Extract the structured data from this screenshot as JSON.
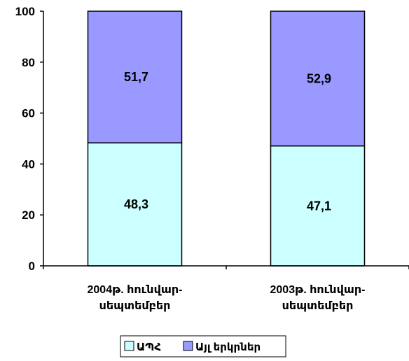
{
  "chart_data": {
    "type": "bar",
    "stacked": true,
    "categories": [
      [
        "2004թ. հունվար-",
        "սեպտեմբեր"
      ],
      [
        "2003թ. հունվար-",
        "սեպտեմբեր"
      ]
    ],
    "series": [
      {
        "name": "ԱՊՀ",
        "values": [
          48.3,
          47.1
        ],
        "labels": [
          "48,3",
          "47,1"
        ],
        "color": "#ccffff"
      },
      {
        "name": "Այլ երկրներ",
        "values": [
          51.7,
          52.9
        ],
        "labels": [
          "51,7",
          "52,9"
        ],
        "color": "#9999ff"
      }
    ],
    "yticks": [
      "0",
      "20",
      "40",
      "60",
      "80",
      "100"
    ],
    "ylim": [
      0,
      100
    ],
    "grid": false,
    "legend": "bottom"
  }
}
